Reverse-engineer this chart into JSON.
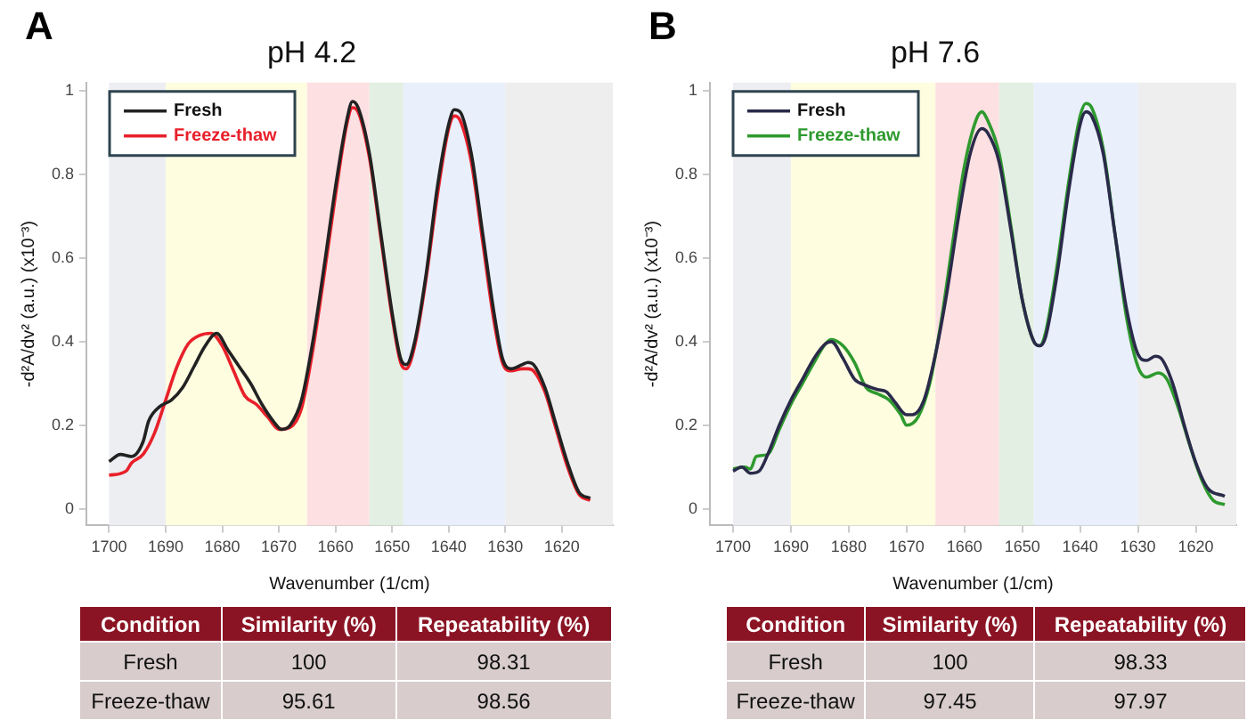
{
  "chart_data": [
    {
      "type": "line",
      "title": "pH 4.2",
      "xlabel": "Wavenumber (1/cm)",
      "ylabel": "-d²A/dv² (a.u.) (x10⁻³)",
      "xlim": [
        1704,
        1611
      ],
      "xticks": [
        1700,
        1690,
        1680,
        1670,
        1660,
        1650,
        1640,
        1630,
        1620
      ],
      "ylim": [
        -0.04,
        1.02
      ],
      "yticks": [
        0,
        0.2,
        0.4,
        0.6,
        0.8,
        1
      ],
      "legend": "top left",
      "grid": false,
      "marker": "none",
      "line_style": "solid",
      "bands": [
        {
          "axis": "x",
          "from": 1700,
          "to": 1690,
          "color": "#eceef1"
        },
        {
          "axis": "x",
          "from": 1690,
          "to": 1665,
          "color": "#fefde0"
        },
        {
          "axis": "x",
          "from": 1665,
          "to": 1654,
          "color": "#fde0e1"
        },
        {
          "axis": "x",
          "from": 1654,
          "to": 1648,
          "color": "#e3efe3"
        },
        {
          "axis": "x",
          "from": 1648,
          "to": 1630,
          "color": "#e9effb"
        },
        {
          "axis": "x",
          "from": 1630,
          "to": 1611,
          "color": "#eeeeee"
        }
      ],
      "x": [
        1700,
        1698,
        1696,
        1694,
        1693,
        1691,
        1689,
        1687,
        1685,
        1683,
        1681,
        1679,
        1677,
        1675,
        1673,
        1671,
        1669.5,
        1668,
        1666,
        1664,
        1662,
        1660,
        1658,
        1657,
        1656,
        1654,
        1652,
        1650,
        1648.5,
        1647.5,
        1646,
        1644,
        1642,
        1640,
        1639,
        1638,
        1636,
        1634,
        1632,
        1630.5,
        1629,
        1627,
        1626,
        1625,
        1623,
        1621,
        1619,
        1617,
        1615
      ],
      "series": [
        {
          "name": "Fresh",
          "color": "#222222",
          "values": [
            0.113,
            0.13,
            0.125,
            0.16,
            0.21,
            0.245,
            0.26,
            0.29,
            0.34,
            0.39,
            0.42,
            0.38,
            0.34,
            0.3,
            0.25,
            0.21,
            0.19,
            0.2,
            0.26,
            0.4,
            0.58,
            0.77,
            0.93,
            0.975,
            0.96,
            0.85,
            0.66,
            0.47,
            0.36,
            0.345,
            0.4,
            0.56,
            0.77,
            0.92,
            0.955,
            0.95,
            0.85,
            0.66,
            0.47,
            0.36,
            0.335,
            0.345,
            0.35,
            0.345,
            0.29,
            0.2,
            0.11,
            0.04,
            0.025
          ]
        },
        {
          "name": "Freeze-thaw",
          "color": "#e8202a",
          "x": [
            1700,
            1697,
            1696,
            1694,
            1692,
            1690,
            1688,
            1686,
            1684,
            1682,
            1680,
            1678,
            1676,
            1674,
            1672,
            1670,
            1668,
            1666,
            1664,
            1662,
            1660,
            1658,
            1657,
            1656,
            1654,
            1652,
            1650,
            1648.5,
            1647.5,
            1646,
            1644,
            1642,
            1640,
            1639,
            1638,
            1636,
            1634,
            1632,
            1630.5,
            1629,
            1627,
            1626,
            1625,
            1623,
            1621,
            1619,
            1617,
            1615
          ],
          "values": [
            0.08,
            0.09,
            0.11,
            0.13,
            0.18,
            0.26,
            0.34,
            0.395,
            0.415,
            0.42,
            0.39,
            0.33,
            0.27,
            0.25,
            0.22,
            0.19,
            0.195,
            0.24,
            0.38,
            0.56,
            0.75,
            0.92,
            0.96,
            0.95,
            0.84,
            0.65,
            0.46,
            0.35,
            0.335,
            0.39,
            0.55,
            0.75,
            0.91,
            0.94,
            0.93,
            0.83,
            0.64,
            0.45,
            0.35,
            0.33,
            0.335,
            0.335,
            0.33,
            0.28,
            0.19,
            0.1,
            0.035,
            0.02
          ]
        }
      ],
      "annotations": [
        "A",
        "Condition",
        "Similarity (%)",
        "Repeatability (%)",
        "Fresh",
        "100",
        "98.31",
        "Freeze-thaw",
        "95.61",
        "98.56"
      ]
    },
    {
      "type": "line",
      "title": "pH 7.6",
      "xlabel": "Wavenumber (1/cm)",
      "ylabel": "-d²A/dv² (a.u.) (x10⁻³)",
      "xlim": [
        1704,
        1613
      ],
      "xticks": [
        1700,
        1690,
        1680,
        1670,
        1660,
        1650,
        1640,
        1630,
        1620
      ],
      "ylim": [
        -0.04,
        1.02
      ],
      "yticks": [
        0,
        0.2,
        0.4,
        0.6,
        0.8,
        1
      ],
      "legend": "top left",
      "grid": false,
      "marker": "none",
      "line_style": "solid",
      "bands": [
        {
          "axis": "x",
          "from": 1700,
          "to": 1690,
          "color": "#eceef1"
        },
        {
          "axis": "x",
          "from": 1690,
          "to": 1665,
          "color": "#fefde0"
        },
        {
          "axis": "x",
          "from": 1665,
          "to": 1654,
          "color": "#fde0e1"
        },
        {
          "axis": "x",
          "from": 1654,
          "to": 1648,
          "color": "#e3efe3"
        },
        {
          "axis": "x",
          "from": 1648,
          "to": 1630,
          "color": "#e9effb"
        },
        {
          "axis": "x",
          "from": 1630,
          "to": 1613,
          "color": "#eeeeee"
        }
      ],
      "x": [
        1700,
        1698.5,
        1697,
        1695.5,
        1694,
        1692,
        1690,
        1688,
        1686,
        1684,
        1683,
        1681,
        1679,
        1677,
        1675,
        1673.5,
        1672,
        1670,
        1669,
        1667,
        1665,
        1663,
        1661,
        1659,
        1657,
        1656,
        1654,
        1652,
        1650,
        1648,
        1647,
        1646,
        1644,
        1642,
        1640,
        1639,
        1638,
        1636,
        1634,
        1632,
        1630,
        1628.5,
        1627,
        1626,
        1624,
        1622,
        1620,
        1618,
        1615
      ],
      "series": [
        {
          "name": "Fresh",
          "color": "#2a2a4a",
          "values": [
            0.09,
            0.1,
            0.085,
            0.09,
            0.13,
            0.2,
            0.26,
            0.31,
            0.36,
            0.395,
            0.4,
            0.36,
            0.31,
            0.295,
            0.285,
            0.28,
            0.255,
            0.225,
            0.225,
            0.26,
            0.37,
            0.52,
            0.7,
            0.85,
            0.91,
            0.9,
            0.83,
            0.67,
            0.5,
            0.4,
            0.39,
            0.41,
            0.56,
            0.76,
            0.92,
            0.95,
            0.94,
            0.85,
            0.66,
            0.48,
            0.37,
            0.355,
            0.365,
            0.36,
            0.3,
            0.2,
            0.11,
            0.05,
            0.03
          ]
        },
        {
          "name": "Freeze-thaw",
          "color": "#2e9a2e",
          "x": [
            1700,
            1698,
            1697,
            1696,
            1694,
            1692,
            1690,
            1688,
            1686,
            1684,
            1683,
            1681,
            1679,
            1677,
            1675,
            1673,
            1671,
            1670,
            1668,
            1666,
            1664,
            1662,
            1660,
            1658,
            1657,
            1656,
            1654,
            1652,
            1650,
            1648,
            1647,
            1646,
            1644,
            1642,
            1640,
            1639,
            1638,
            1636,
            1634,
            1632,
            1630,
            1628.5,
            1626.5,
            1625,
            1623,
            1621,
            1619,
            1617,
            1615
          ],
          "values": [
            0.095,
            0.1,
            0.095,
            0.125,
            0.13,
            0.19,
            0.25,
            0.3,
            0.35,
            0.395,
            0.405,
            0.39,
            0.35,
            0.29,
            0.275,
            0.26,
            0.225,
            0.2,
            0.22,
            0.3,
            0.45,
            0.64,
            0.82,
            0.93,
            0.95,
            0.93,
            0.85,
            0.68,
            0.5,
            0.4,
            0.39,
            0.42,
            0.58,
            0.78,
            0.94,
            0.97,
            0.96,
            0.86,
            0.66,
            0.46,
            0.34,
            0.315,
            0.325,
            0.31,
            0.24,
            0.15,
            0.07,
            0.02,
            0.01
          ]
        }
      ],
      "annotations": [
        "B",
        "Condition",
        "Similarity (%)",
        "Repeatability (%)",
        "Fresh",
        "100",
        "98.33",
        "Freeze-thaw",
        "97.45",
        "97.97"
      ]
    }
  ]
}
